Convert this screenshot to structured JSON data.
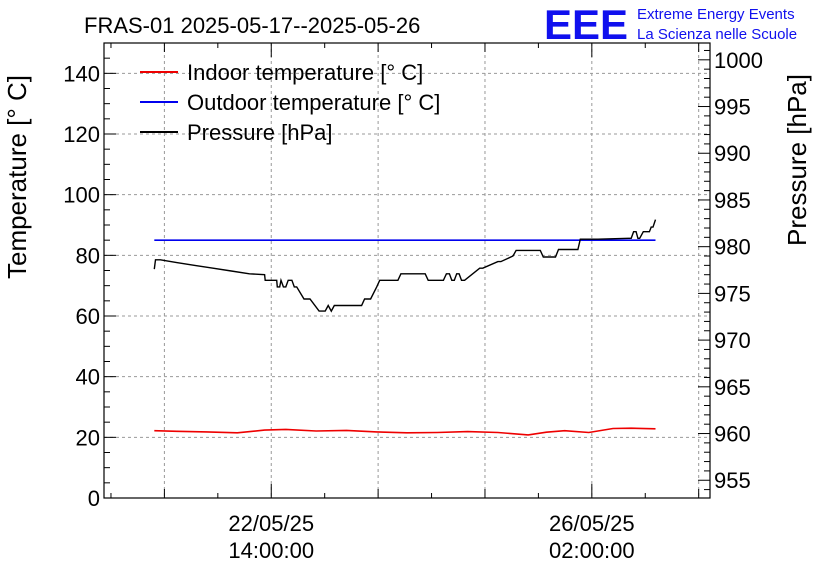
{
  "chart_data": {
    "type": "line",
    "title": "FRAS-01 2025-05-17--2025-05-26",
    "logo": {
      "text": "EEE",
      "line1": "Extreme Energy Events",
      "line2": "La Scienza nelle Scuole",
      "color": "#1010ee"
    },
    "ylabel_left": "Temperature [° C]",
    "ylabel_right": "Pressure [hPa]",
    "ylim_left": [
      0,
      150
    ],
    "ylim_right": [
      953.1,
      1001.8
    ],
    "xlim": [
      0,
      100
    ],
    "yticks_left": [
      0,
      20,
      40,
      60,
      80,
      100,
      120,
      140
    ],
    "yticks_right": [
      955,
      960,
      965,
      970,
      975,
      980,
      985,
      990,
      995,
      1000
    ],
    "xticks": [
      {
        "pos": 27.6,
        "line1": "22/05/25",
        "line2": "14:00:00"
      },
      {
        "pos": 80.5,
        "line1": "26/05/25",
        "line2": "02:00:00"
      }
    ],
    "grid": true,
    "legend_position": "top-left",
    "series": [
      {
        "name": "Indoor temperature [° C]",
        "axis": "left",
        "color": "#ee0000",
        "x": [
          8.3,
          12,
          17,
          22,
          26.5,
          30,
          35,
          40,
          45,
          50,
          55,
          60,
          65,
          70,
          73,
          76,
          80,
          84,
          87,
          91
        ],
        "y": [
          22.2,
          22.0,
          21.8,
          21.5,
          22.4,
          22.6,
          22.1,
          22.3,
          21.8,
          21.5,
          21.6,
          21.9,
          21.6,
          20.8,
          21.7,
          22.2,
          21.6,
          22.9,
          23.0,
          22.8
        ]
      },
      {
        "name": "Outdoor temperature [° C]",
        "axis": "left",
        "color": "#0000ee",
        "x": [
          8.3,
          91
        ],
        "y": [
          85,
          85
        ]
      },
      {
        "name": "Pressure [hPa]",
        "axis": "right",
        "color": "#000000",
        "x": [
          8.3,
          8.5,
          9.3,
          12,
          15,
          18,
          21,
          24,
          26.5,
          26.6,
          28.5,
          28.6,
          29,
          29.2,
          29.6,
          30,
          30.4,
          31,
          31.4,
          31.8,
          33,
          34,
          35.5,
          36,
          36.5,
          37,
          37.5,
          38,
          42.5,
          43,
          44,
          45,
          45.5,
          48.5,
          49,
          53,
          53.5,
          56,
          56.5,
          57,
          57.4,
          57.8,
          58.2,
          58.6,
          59,
          59.5,
          62,
          62.5,
          65,
          65.5,
          67.5,
          68,
          72,
          72.5,
          74.5,
          75,
          78.2,
          78.6,
          81,
          81.5,
          86.5,
          87,
          87.4,
          87.8,
          88.1,
          88.4,
          89,
          89.5,
          90,
          90.3,
          90.6,
          91
        ],
        "y": [
          977.6,
          978.6,
          978.6,
          978.3,
          978.0,
          977.7,
          977.4,
          977.1,
          977.0,
          976.4,
          976.4,
          975.7,
          975.7,
          976.4,
          975.7,
          975.7,
          976.4,
          976.4,
          975.7,
          975.7,
          974.4,
          974.4,
          973.1,
          973.1,
          973.1,
          973.7,
          973.1,
          973.7,
          973.7,
          974.4,
          974.4,
          975.7,
          976.4,
          976.4,
          977.1,
          977.1,
          976.4,
          976.4,
          977.1,
          977.1,
          976.4,
          976.4,
          977.1,
          977.1,
          976.4,
          976.4,
          977.7,
          977.7,
          978.4,
          978.4,
          979.0,
          979.6,
          979.6,
          978.9,
          978.9,
          979.7,
          979.7,
          980.8,
          980.8,
          980.8,
          980.9,
          980.9,
          981.6,
          981.6,
          980.9,
          980.9,
          981.6,
          981.6,
          981.6,
          982.1,
          982.1,
          982.9
        ]
      }
    ]
  }
}
